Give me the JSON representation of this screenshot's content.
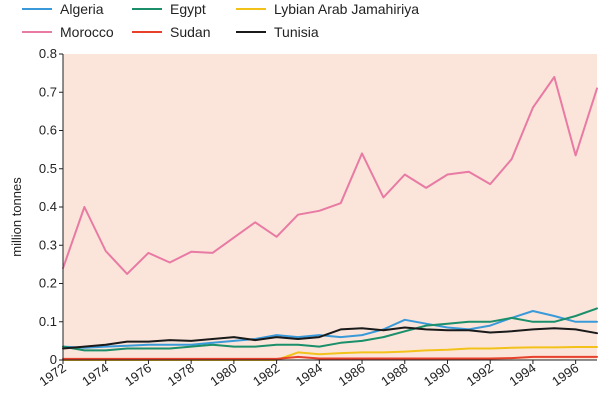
{
  "chart_data": {
    "type": "line",
    "title": "",
    "xlabel": "",
    "ylabel": "million tonnes",
    "x": [
      1972,
      1973,
      1974,
      1975,
      1976,
      1977,
      1978,
      1979,
      1980,
      1981,
      1982,
      1983,
      1984,
      1985,
      1986,
      1987,
      1988,
      1989,
      1990,
      1991,
      1992,
      1993,
      1994,
      1995,
      1996,
      1997
    ],
    "xticks": [
      1972,
      1974,
      1976,
      1978,
      1980,
      1982,
      1984,
      1986,
      1988,
      1990,
      1992,
      1994,
      1996
    ],
    "xticklabels": [
      "1972",
      "1974",
      "1976",
      "1978",
      "1980",
      "1982",
      "1984",
      "1986",
      "1988",
      "1990",
      "1992",
      "1994",
      "1996"
    ],
    "xlim": [
      1972,
      1997
    ],
    "ylim": [
      0,
      0.8
    ],
    "yticks": [
      0,
      0.1,
      0.2,
      0.3,
      0.4,
      0.5,
      0.6,
      0.7,
      0.8
    ],
    "yticklabels": [
      "0",
      "0.1",
      "0.2",
      "0.3",
      "0.4",
      "0.5",
      "0.6",
      "0.7",
      "0.8"
    ],
    "grid": false,
    "background": "#fbe5da",
    "legend_position": "top",
    "series": [
      {
        "name": "Algeria",
        "color": "#3a9ad9",
        "values": [
          0.035,
          0.032,
          0.035,
          0.037,
          0.04,
          0.04,
          0.04,
          0.045,
          0.05,
          0.055,
          0.065,
          0.06,
          0.065,
          0.06,
          0.065,
          0.08,
          0.105,
          0.095,
          0.085,
          0.08,
          0.09,
          0.11,
          0.128,
          0.115,
          0.1,
          0.1
        ]
      },
      {
        "name": "Egypt",
        "color": "#1a8f6a",
        "values": [
          0.035,
          0.025,
          0.025,
          0.03,
          0.03,
          0.03,
          0.035,
          0.04,
          0.035,
          0.035,
          0.04,
          0.04,
          0.035,
          0.045,
          0.05,
          0.06,
          0.075,
          0.09,
          0.095,
          0.1,
          0.1,
          0.11,
          0.1,
          0.1,
          0.115,
          0.135
        ]
      },
      {
        "name": "Lybian Arab Jamahiriya",
        "color": "#f2c21b",
        "values": [
          0,
          0,
          0,
          0,
          0,
          0,
          0,
          0,
          0,
          0,
          0,
          0.02,
          0.015,
          0.018,
          0.02,
          0.02,
          0.022,
          0.025,
          0.027,
          0.03,
          0.03,
          0.032,
          0.033,
          0.033,
          0.034,
          0.034
        ]
      },
      {
        "name": "Morocco",
        "color": "#e87aa4",
        "values": [
          0.24,
          0.4,
          0.285,
          0.225,
          0.28,
          0.255,
          0.283,
          0.28,
          0.32,
          0.36,
          0.322,
          0.38,
          0.39,
          0.41,
          0.54,
          0.425,
          0.485,
          0.45,
          0.485,
          0.492,
          0.46,
          0.525,
          0.66,
          0.74,
          0.535,
          0.71
        ]
      },
      {
        "name": "Sudan",
        "color": "#e8402a",
        "values": [
          0.003,
          0.003,
          0.003,
          0.003,
          0.003,
          0.003,
          0.003,
          0.003,
          0.003,
          0.003,
          0.003,
          0.008,
          0.004,
          0.004,
          0.004,
          0.004,
          0.004,
          0.004,
          0.004,
          0.004,
          0.004,
          0.005,
          0.008,
          0.008,
          0.008,
          0.008
        ]
      },
      {
        "name": "Tunisia",
        "color": "#1a1a1a",
        "values": [
          0.03,
          0.035,
          0.04,
          0.048,
          0.048,
          0.052,
          0.05,
          0.055,
          0.06,
          0.052,
          0.06,
          0.055,
          0.06,
          0.08,
          0.083,
          0.078,
          0.085,
          0.08,
          0.078,
          0.078,
          0.072,
          0.075,
          0.08,
          0.083,
          0.08,
          0.07
        ]
      }
    ]
  }
}
